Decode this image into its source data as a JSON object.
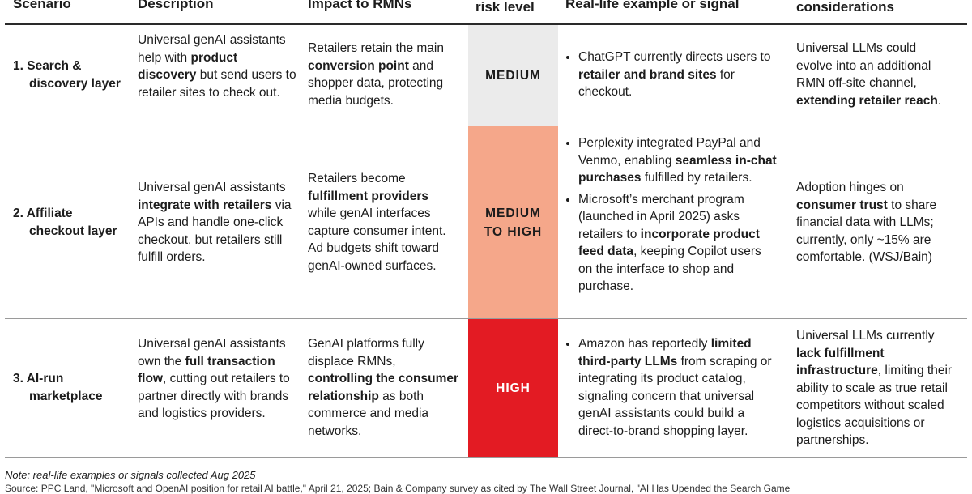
{
  "headers": {
    "scenario": "Scenario",
    "description": "Description",
    "impact": "Impact to RMNs",
    "risk": "risk level",
    "example": "Real-life example or signal",
    "considerations": "considerations"
  },
  "colors": {
    "medium": "#ebebeb",
    "medium_to_high": "#f5a78a",
    "high": "#e31b23",
    "high_text": "#ffffff"
  },
  "rows": [
    {
      "scenario": [
        "1. Search &",
        "discovery layer"
      ],
      "description": [
        {
          "t": "Universal genAI assistants help with "
        },
        {
          "t": "product discovery",
          "b": true
        },
        {
          "t": " but send users to retailer sites to check out."
        }
      ],
      "impact": [
        {
          "t": "Retailers retain the main "
        },
        {
          "t": "conversion point",
          "b": true
        },
        {
          "t": " and shopper data, protecting media budgets."
        }
      ],
      "risk": "MEDIUM",
      "examples": [
        [
          {
            "t": "ChatGPT currently directs users to "
          },
          {
            "t": "retailer and brand sites",
            "b": true
          },
          {
            "t": " for checkout."
          }
        ]
      ],
      "considerations": [
        {
          "t": "Universal LLMs could evolve into an additional RMN off-site channel, "
        },
        {
          "t": "extending retailer reach",
          "b": true
        },
        {
          "t": "."
        }
      ]
    },
    {
      "scenario": [
        "2. Affiliate",
        "checkout layer"
      ],
      "description": [
        {
          "t": "Universal genAI assistants "
        },
        {
          "t": "integrate with retailers",
          "b": true
        },
        {
          "t": " via APIs and handle one-click checkout, but retailers still fulfill orders."
        }
      ],
      "impact": [
        {
          "t": "Retailers become "
        },
        {
          "t": "fulfillment providers",
          "b": true
        },
        {
          "t": " while genAI interfaces capture consumer intent. Ad budgets shift toward genAI-owned surfaces."
        }
      ],
      "risk": "MEDIUM TO HIGH",
      "examples": [
        [
          {
            "t": "Perplexity integrated PayPal and Venmo, enabling "
          },
          {
            "t": "seamless in-chat purchases",
            "b": true
          },
          {
            "t": " fulfilled by retailers."
          }
        ],
        [
          {
            "t": "Microsoft’s merchant program (launched in April 2025) asks retailers to "
          },
          {
            "t": "incorporate product feed data",
            "b": true
          },
          {
            "t": ", keeping Copilot users on the interface to shop and purchase."
          }
        ]
      ],
      "considerations": [
        {
          "t": "Adoption hinges on "
        },
        {
          "t": "consumer trust",
          "b": true
        },
        {
          "t": " to share financial data with LLMs; currently, only ~15% are comfortable. (WSJ/Bain)"
        }
      ]
    },
    {
      "scenario": [
        "3. AI-run",
        "marketplace"
      ],
      "description": [
        {
          "t": "Universal genAI assistants own the "
        },
        {
          "t": "full transaction flow",
          "b": true
        },
        {
          "t": ", cutting out retailers to partner directly with brands and logistics providers."
        }
      ],
      "impact": [
        {
          "t": "GenAI platforms fully displace RMNs, "
        },
        {
          "t": "controlling the consumer relationship",
          "b": true
        },
        {
          "t": " as both commerce and media networks."
        }
      ],
      "risk": "HIGH",
      "examples": [
        [
          {
            "t": "Amazon has reportedly "
          },
          {
            "t": "limited third-party LLMs",
            "b": true
          },
          {
            "t": " from scraping or integrating its product catalog, signaling concern that universal genAI assistants could build a direct-to-brand shopping layer."
          }
        ]
      ],
      "considerations": [
        {
          "t": "Universal LLMs currently "
        },
        {
          "t": "lack fulfillment infrastructure",
          "b": true
        },
        {
          "t": ", limiting their ability to scale as true retail competitors without scaled logistics acquisitions or partnerships."
        }
      ]
    }
  ],
  "note": "Note: real-life examples or signals collected Aug 2025",
  "source": "Source: PPC Land, \"Microsoft and OpenAI position for retail AI battle,\" April 21, 2025; Bain & Company survey as cited by The Wall Street Journal, \"AI Has Upended the Search Game"
}
